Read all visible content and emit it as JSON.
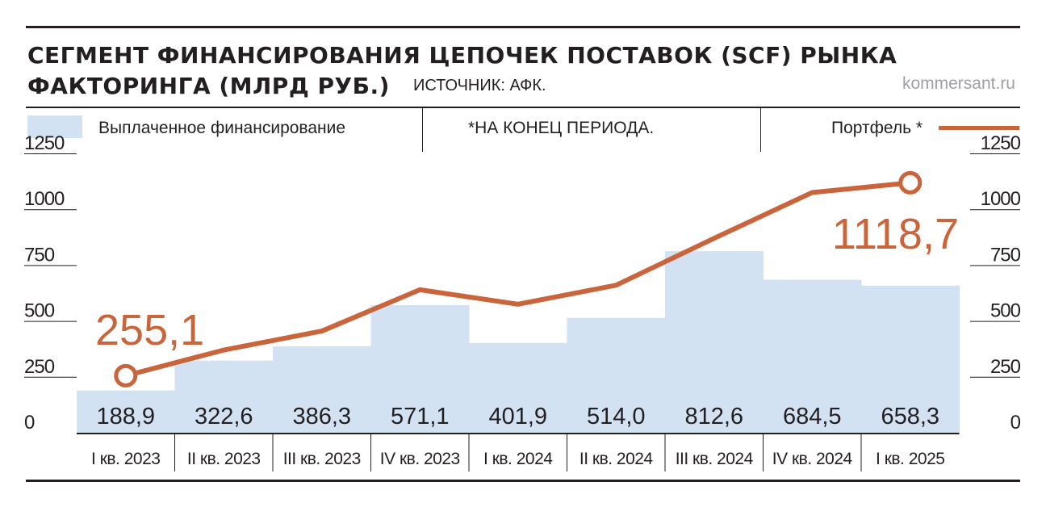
{
  "title_line1": "СЕГМЕНТ ФИНАНСИРОВАНИЯ ЦЕПОЧЕК ПОСТАВОК (SCF) РЫНКА",
  "title_line2": "ФАКТОРИНГА (МЛРД РУБ.)",
  "source": "ИСТОЧНИК: АФК.",
  "site": "kommersant.ru",
  "legend": {
    "bars": "Выплаченное финансирование",
    "note": "*НА КОНЕЦ ПЕРИОДА.",
    "line": "Портфель *"
  },
  "colors": {
    "bar": "#d3e2f3",
    "line": "#c9643b",
    "text": "#231f20",
    "site": "#9d9fa2"
  },
  "chart_data": {
    "type": "bar+line",
    "categories": [
      "I кв. 2023",
      "II кв. 2023",
      "III кв. 2023",
      "IV кв. 2023",
      "I кв. 2024",
      "II кв. 2024",
      "III кв. 2024",
      "IV кв. 2024",
      "I кв. 2025"
    ],
    "series": [
      {
        "name": "Выплаченное финансирование",
        "type": "bar",
        "values": [
          188.9,
          322.6,
          386.3,
          571.1,
          401.9,
          514.0,
          812.6,
          684.5,
          658.3
        ],
        "labels": [
          "188,9",
          "322,6",
          "386,3",
          "571,1",
          "401,9",
          "514,0",
          "812,6",
          "684,5",
          "658,3"
        ]
      },
      {
        "name": "Портфель *",
        "type": "line",
        "values": [
          255.1,
          370,
          455,
          640,
          575,
          660,
          870,
          1075,
          1118.7
        ],
        "end_labels": [
          "255,1",
          "1118,7"
        ]
      }
    ],
    "yticks": [
      "0",
      "250",
      "500",
      "750",
      "1000",
      "1250"
    ],
    "ylim": [
      0,
      1250
    ],
    "grid": false
  }
}
